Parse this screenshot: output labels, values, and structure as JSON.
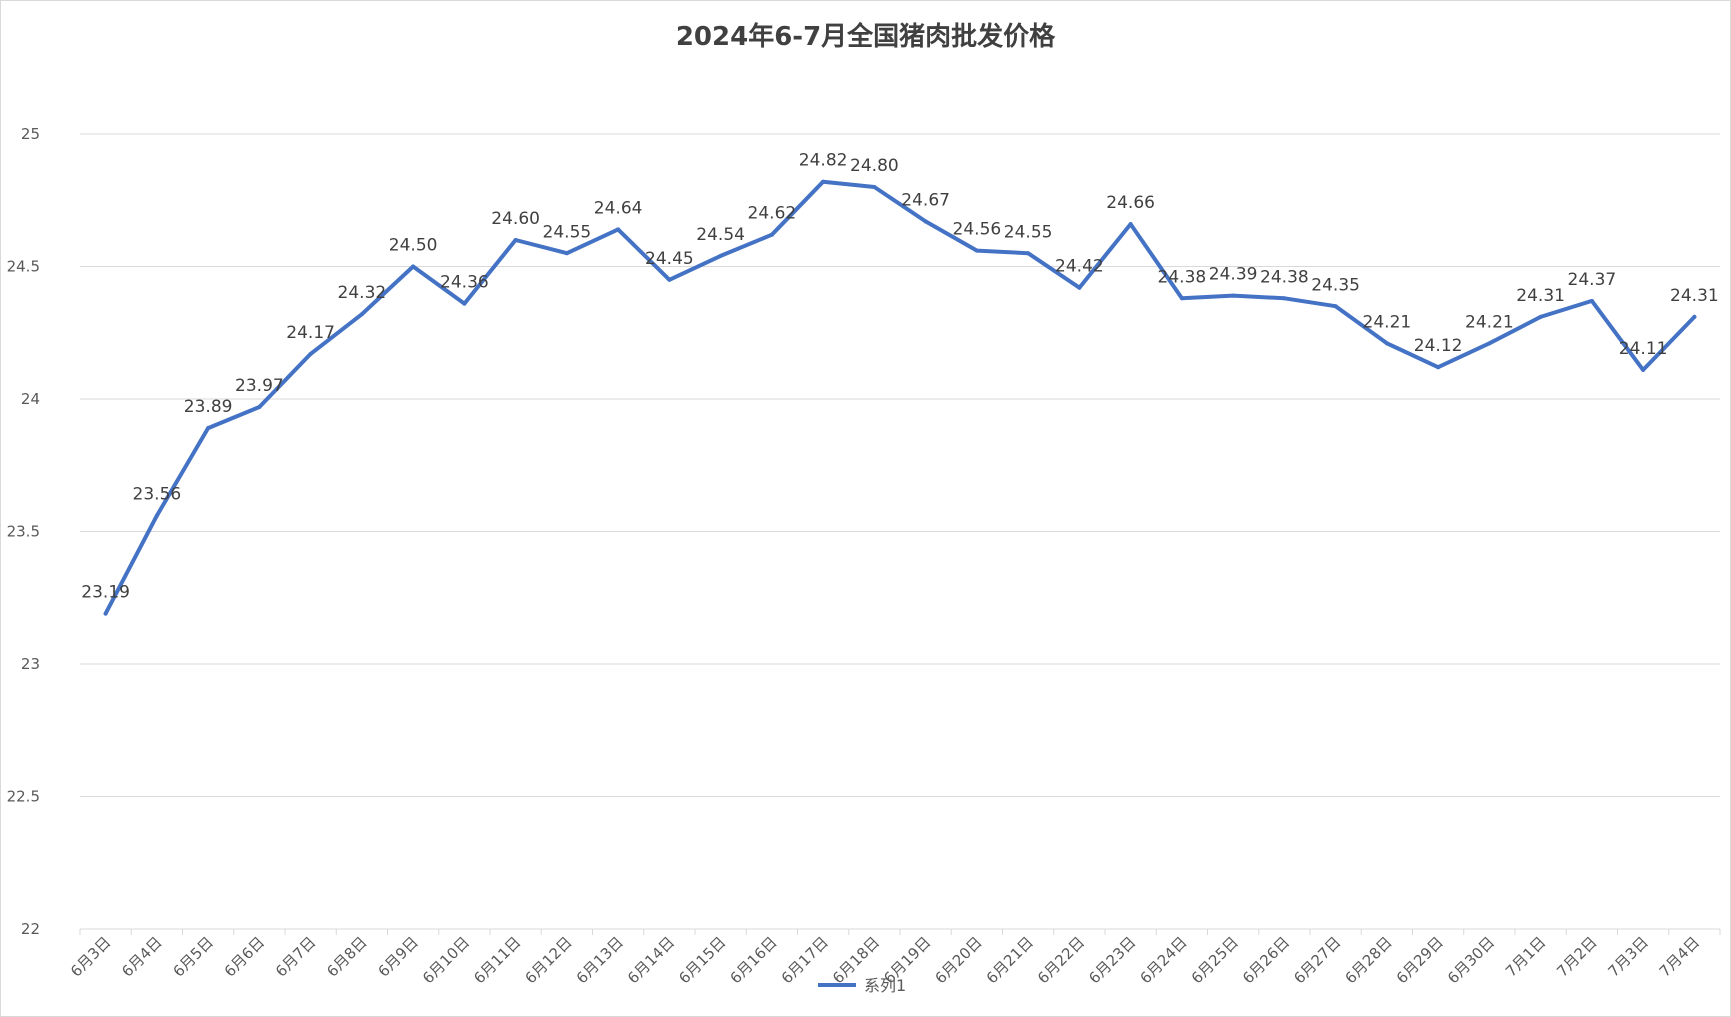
{
  "chart_data": {
    "type": "line",
    "title": "2024年6-7月全国猪肉批发价格",
    "xlabel": "",
    "ylabel": "",
    "ylim": [
      22,
      25
    ],
    "y_ticks": [
      "22",
      "22.5",
      "23",
      "23.5",
      "24",
      "24.5",
      "25"
    ],
    "grid": "horizontal",
    "legend_position": "bottom",
    "categories": [
      "6月3日",
      "6月4日",
      "6月5日",
      "6月6日",
      "6月7日",
      "6月8日",
      "6月9日",
      "6月10日",
      "6月11日",
      "6月12日",
      "6月13日",
      "6月14日",
      "6月15日",
      "6月16日",
      "6月17日",
      "6月18日",
      "6月19日",
      "6月20日",
      "6月21日",
      "6月22日",
      "6月23日",
      "6月24日",
      "6月25日",
      "6月26日",
      "6月27日",
      "6月28日",
      "6月29日",
      "6月30日",
      "7月1日",
      "7月2日",
      "7月3日",
      "7月4日"
    ],
    "series": [
      {
        "name": "系列1",
        "color": "#4472C4",
        "values": [
          23.19,
          23.56,
          23.89,
          23.97,
          24.17,
          24.32,
          24.5,
          24.36,
          24.6,
          24.55,
          24.64,
          24.45,
          24.54,
          24.62,
          24.82,
          24.8,
          24.67,
          24.56,
          24.55,
          24.42,
          24.66,
          24.38,
          24.39,
          24.38,
          24.35,
          24.21,
          24.12,
          24.21,
          24.31,
          24.37,
          24.11,
          24.31
        ],
        "labels": [
          "23.19",
          "23.56",
          "23.89",
          "23.97",
          "24.17",
          "24.32",
          "24.50",
          "24.36",
          "24.60",
          "24.55",
          "24.64",
          "24.45",
          "24.54",
          "24.62",
          "24.82",
          "24.80",
          "24.67",
          "24.56",
          "24.55",
          "24.42",
          "24.66",
          "24.38",
          "24.39",
          "24.38",
          "24.35",
          "24.21",
          "24.12",
          "24.21",
          "24.31",
          "24.37",
          "24.11",
          "24.31"
        ]
      }
    ]
  }
}
